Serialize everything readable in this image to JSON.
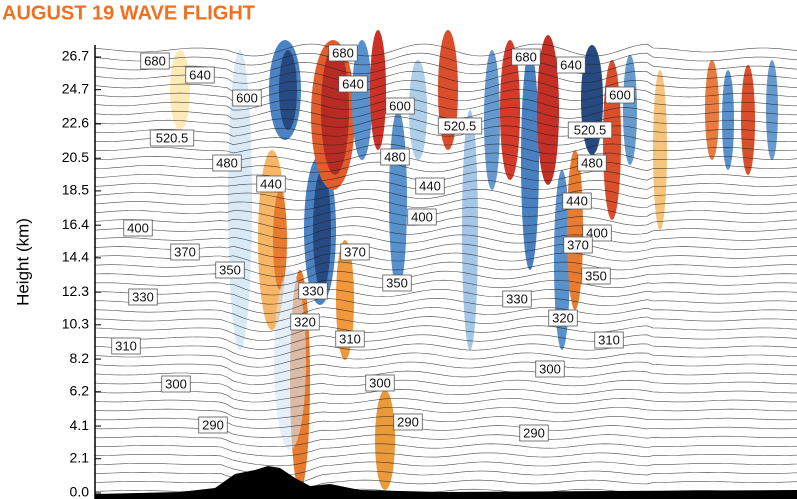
{
  "chart_data": {
    "type": "contour",
    "title": "AUGUST 19 WAVE FLIGHT",
    "ylabel": "Height (km)",
    "ylim": [
      0,
      26.7
    ],
    "yticks": [
      {
        "value": 0,
        "label": "0.0"
      },
      2.1,
      4.1,
      6.2,
      8.2,
      10.3,
      12.3,
      14.4,
      16.4,
      18.5,
      20.5,
      22.6,
      24.7,
      26.7
    ],
    "contour_labels": [
      "680",
      "640",
      "600",
      "520.5",
      "480",
      "440",
      "400",
      "370",
      "350",
      "330",
      "310",
      "300",
      "290",
      "680",
      "640",
      "600",
      "480",
      "440",
      "400",
      "370",
      "330",
      "320",
      "350",
      "310",
      "300",
      "290",
      "520.5",
      "680",
      "640",
      "600",
      "520.5",
      "480",
      "440",
      "400",
      "370",
      "350",
      "330",
      "320",
      "310",
      "300",
      "290"
    ]
  }
}
